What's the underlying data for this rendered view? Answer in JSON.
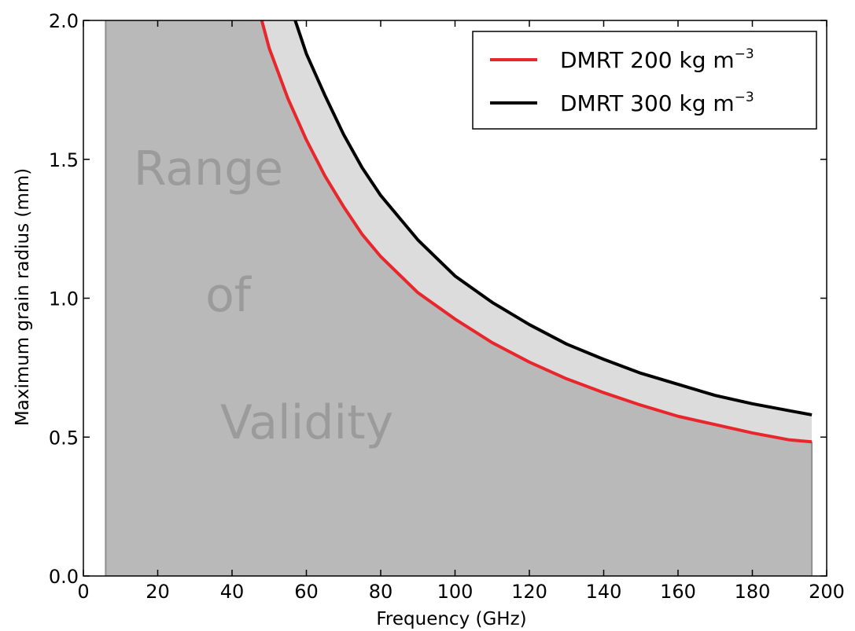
{
  "chart_data": {
    "type": "area",
    "xlabel": "Frequency (GHz)",
    "ylabel": "Maximum grain radius (mm)",
    "xlim": [
      0,
      200
    ],
    "ylim": [
      0,
      2.0
    ],
    "x_ticks": [
      0,
      20,
      40,
      60,
      80,
      100,
      120,
      140,
      160,
      180,
      200
    ],
    "x_tick_labels": [
      "0",
      "20",
      "40",
      "60",
      "80",
      "100",
      "120",
      "140",
      "160",
      "180",
      "200"
    ],
    "y_ticks": [
      0,
      0.5,
      1.0,
      1.5,
      2.0
    ],
    "y_tick_labels": [
      "0.0",
      "0.5",
      "1.0",
      "1.5",
      "2.0"
    ],
    "grid": false,
    "legend_position": "top-right",
    "series": [
      {
        "name": "DMRT 200 kg m",
        "name_exponent": "−3",
        "color": "#e8262b",
        "x": [
          48,
          50,
          55,
          60,
          65,
          70,
          75,
          80,
          90,
          100,
          110,
          120,
          130,
          140,
          150,
          160,
          170,
          180,
          190,
          196
        ],
        "y": [
          2.0,
          1.9,
          1.72,
          1.57,
          1.44,
          1.33,
          1.23,
          1.15,
          1.02,
          0.925,
          0.84,
          0.77,
          0.71,
          0.66,
          0.615,
          0.575,
          0.545,
          0.515,
          0.49,
          0.483
        ]
      },
      {
        "name": "DMRT 300 kg m",
        "name_exponent": "−3",
        "color": "#000000",
        "x": [
          57,
          60,
          65,
          70,
          75,
          80,
          90,
          100,
          110,
          120,
          130,
          140,
          150,
          160,
          170,
          180,
          190,
          196
        ],
        "y": [
          2.0,
          1.88,
          1.73,
          1.59,
          1.47,
          1.37,
          1.21,
          1.08,
          0.985,
          0.905,
          0.835,
          0.78,
          0.73,
          0.69,
          0.65,
          0.62,
          0.595,
          0.58
        ]
      }
    ],
    "validity_region": {
      "x_start": 6,
      "x_end": 196,
      "fill_color": "#b9b9b9",
      "band_color": "#dcdcdc"
    },
    "annotations": [
      "Range",
      "of",
      "Validity"
    ]
  }
}
